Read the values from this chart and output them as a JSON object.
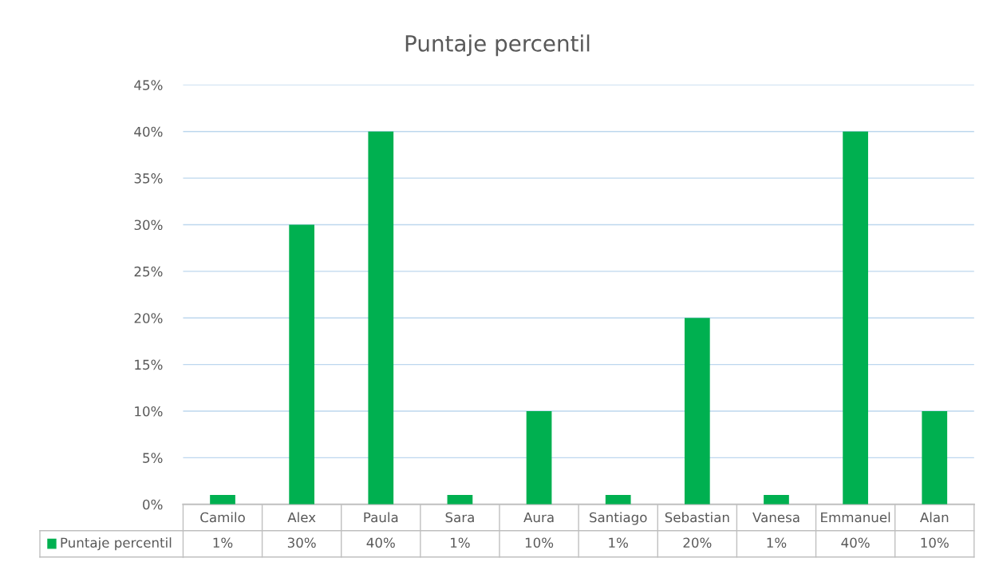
{
  "chart_data": {
    "type": "bar",
    "title": "Puntaje percentil",
    "categories": [
      "Camilo",
      "Alex",
      "Paula",
      "Sara",
      "Aura",
      "Santiago",
      "Sebastian",
      "Vanesa",
      "Emmanuel",
      "Alan"
    ],
    "series": [
      {
        "name": "Puntaje percentil",
        "color": "#00b050",
        "values": [
          1,
          30,
          40,
          1,
          10,
          1,
          20,
          1,
          40,
          10
        ]
      }
    ],
    "value_labels": [
      "1%",
      "30%",
      "40%",
      "1%",
      "10%",
      "1%",
      "20%",
      "1%",
      "40%",
      "10%"
    ],
    "ylim": [
      0,
      45
    ],
    "yticks": [
      {
        "value": 0,
        "label": "0%"
      },
      {
        "value": 5,
        "label": "5%"
      },
      {
        "value": 10,
        "label": "10%"
      },
      {
        "value": 15,
        "label": "15%"
      },
      {
        "value": 20,
        "label": "20%"
      },
      {
        "value": 25,
        "label": "25%"
      },
      {
        "value": 30,
        "label": "30%"
      },
      {
        "value": 35,
        "label": "35%"
      },
      {
        "value": 40,
        "label": "40%"
      },
      {
        "value": 45,
        "label": "45%"
      }
    ],
    "grid": "y",
    "legend": "bottom"
  }
}
